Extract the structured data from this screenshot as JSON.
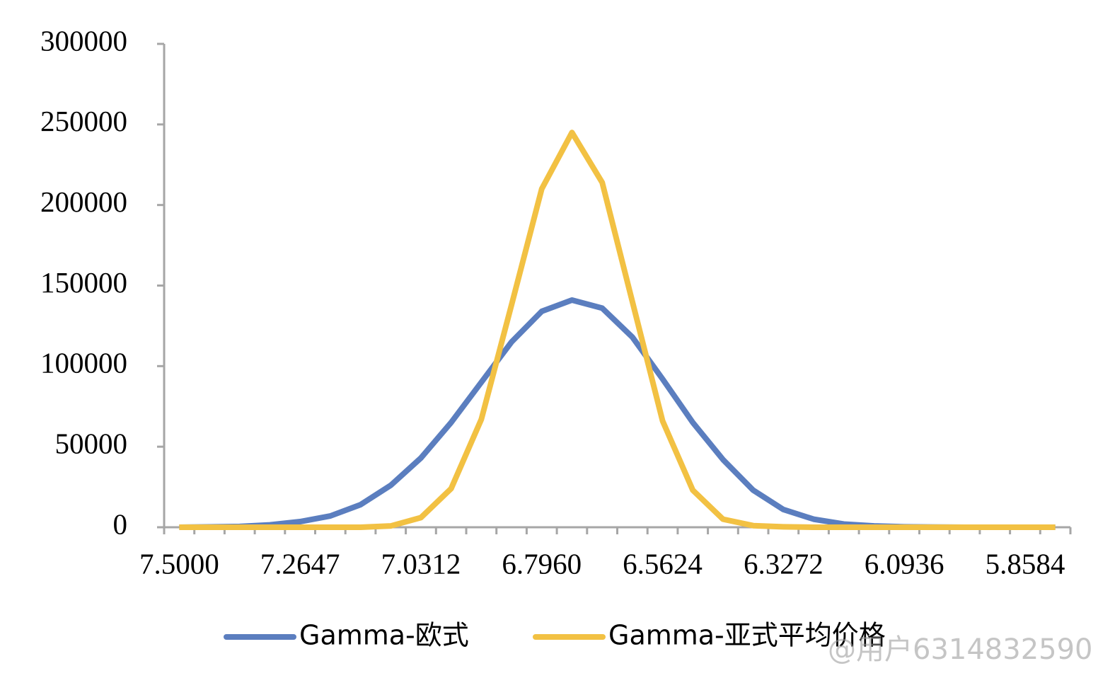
{
  "chart_data": {
    "type": "line",
    "categories": [
      "7.5000",
      null,
      null,
      null,
      "7.2647",
      null,
      null,
      null,
      "7.0312",
      null,
      null,
      null,
      "6.7960",
      null,
      null,
      null,
      "6.5624",
      null,
      null,
      null,
      "6.3272",
      null,
      null,
      null,
      "6.0936",
      null,
      null,
      null,
      "5.8584",
      null
    ],
    "series": [
      {
        "name": "Gamma-欧式",
        "color": "#5b7ebf",
        "values": [
          0,
          200,
          500,
          1500,
          3500,
          7000,
          14000,
          26000,
          43000,
          65000,
          90000,
          115000,
          134000,
          141000,
          136000,
          118000,
          92000,
          65000,
          42000,
          23000,
          11000,
          5000,
          2000,
          800,
          300,
          100,
          0,
          0,
          0,
          0
        ]
      },
      {
        "name": "Gamma-亚式平均价格",
        "color": "#f2c143",
        "values": [
          0,
          0,
          0,
          0,
          0,
          0,
          0,
          800,
          6000,
          24000,
          67000,
          138000,
          210000,
          245000,
          214000,
          140000,
          66000,
          23000,
          5000,
          1000,
          300,
          0,
          0,
          0,
          0,
          0,
          0,
          0,
          0,
          0
        ]
      }
    ],
    "ylim": [
      0,
      300000
    ],
    "yticks": [
      0,
      50000,
      100000,
      150000,
      200000,
      250000,
      300000
    ],
    "grid": false,
    "legend": "bottom",
    "watermark": "@用户6314832590"
  }
}
